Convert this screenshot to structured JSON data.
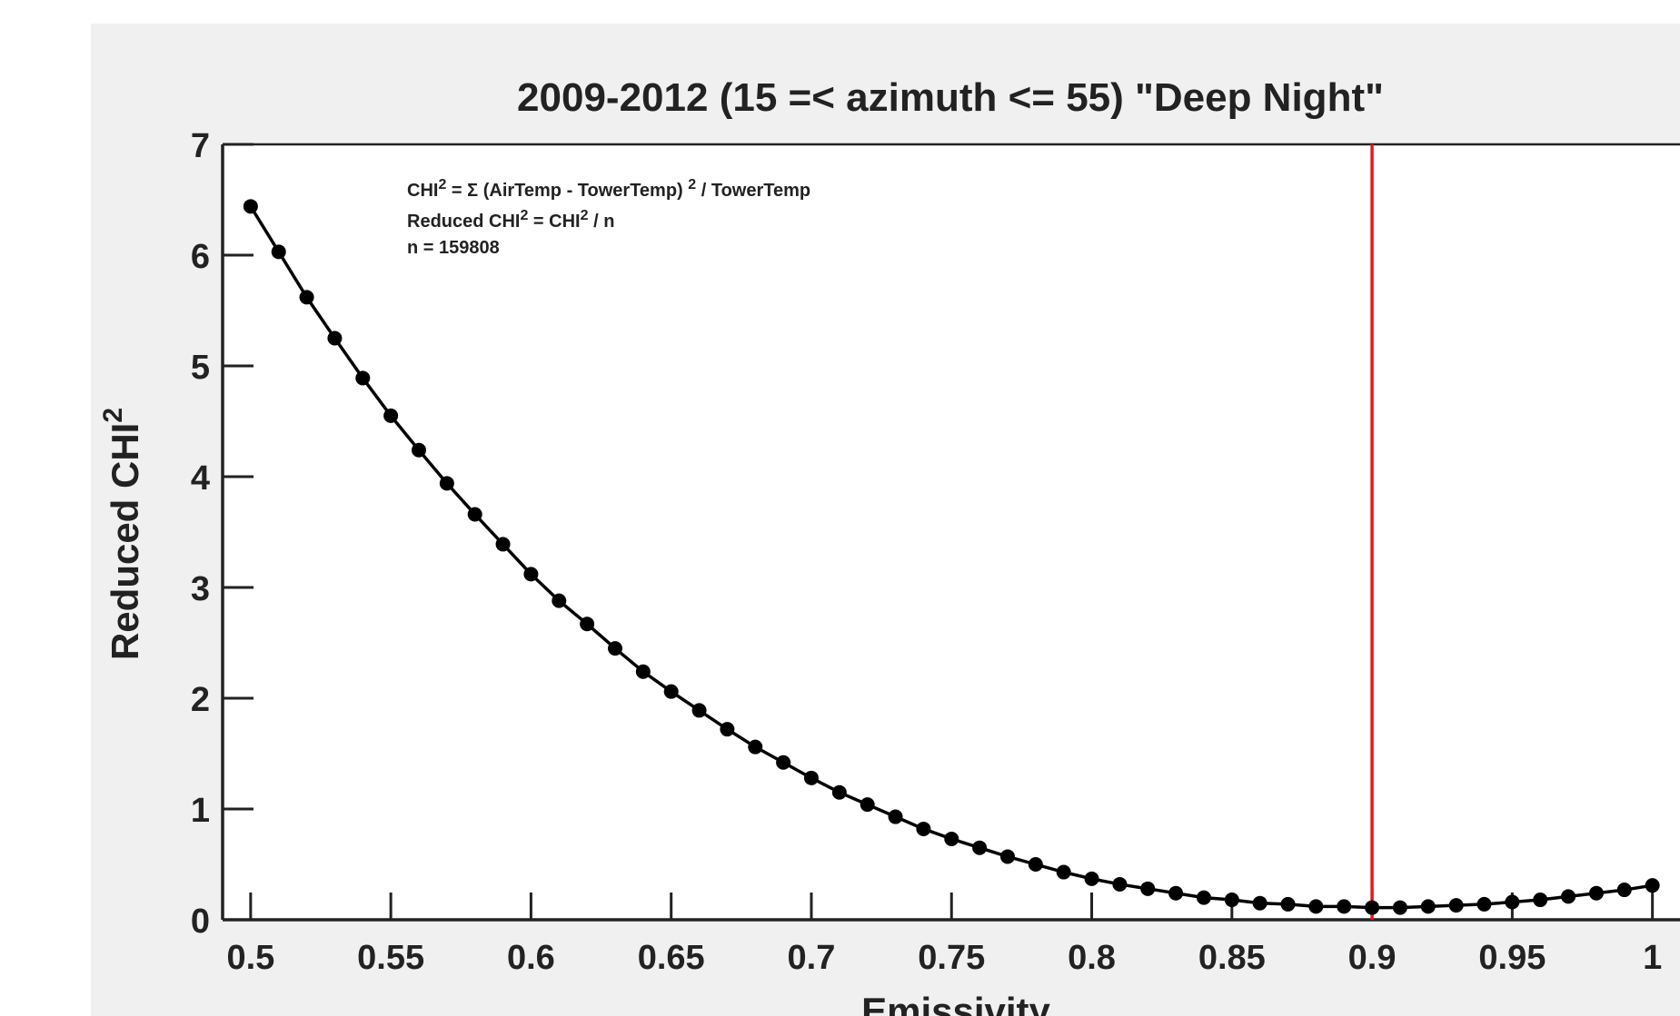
{
  "chart_data": {
    "type": "line",
    "title": "2009-2012 (15 =< azimuth <= 55) \"Deep Night\"",
    "xlabel": "Emissivity",
    "ylabel": [
      "Reduced CHI",
      "2"
    ],
    "annotations": [
      [
        "CHI",
        "2",
        " =  Σ (AirTemp - TowerTemp) ",
        "2",
        " / TowerTemp"
      ],
      [
        "Reduced CHI",
        "2",
        " = CHI",
        "2",
        " / n"
      ],
      [
        "n = 159808"
      ]
    ],
    "x": [
      0.5,
      0.51,
      0.52,
      0.53,
      0.54,
      0.55,
      0.56,
      0.57,
      0.58,
      0.59,
      0.6,
      0.61,
      0.62,
      0.63,
      0.64,
      0.65,
      0.66,
      0.67,
      0.68,
      0.69,
      0.7,
      0.71,
      0.72,
      0.73,
      0.74,
      0.75,
      0.76,
      0.77,
      0.78,
      0.79,
      0.8,
      0.81,
      0.82,
      0.83,
      0.84,
      0.85,
      0.86,
      0.87,
      0.88,
      0.89,
      0.9,
      0.91,
      0.92,
      0.93,
      0.94,
      0.95,
      0.96,
      0.97,
      0.98,
      0.99,
      1.0
    ],
    "series": [
      {
        "color": "#000000",
        "values": [
          6.44,
          6.03,
          5.62,
          5.25,
          4.89,
          4.55,
          4.24,
          3.94,
          3.66,
          3.39,
          3.12,
          2.88,
          2.67,
          2.45,
          2.24,
          2.06,
          1.89,
          1.72,
          1.56,
          1.42,
          1.28,
          1.15,
          1.04,
          0.93,
          0.82,
          0.73,
          0.65,
          0.57,
          0.5,
          0.43,
          0.37,
          0.32,
          0.28,
          0.24,
          0.2,
          0.18,
          0.15,
          0.14,
          0.12,
          0.12,
          0.11,
          0.11,
          0.12,
          0.13,
          0.14,
          0.16,
          0.18,
          0.21,
          0.24,
          0.27,
          0.31
        ]
      }
    ],
    "vline": {
      "x": 0.9,
      "color": "#e41a1c"
    },
    "xlim": [
      0.49,
      1.01
    ],
    "ylim": [
      0,
      7
    ],
    "xticks": [
      0.5,
      0.55,
      0.6,
      0.65,
      0.7,
      0.75,
      0.8,
      0.85,
      0.9,
      0.95,
      1
    ],
    "yticks": [
      0,
      1,
      2,
      3,
      4,
      5,
      6,
      7
    ]
  }
}
